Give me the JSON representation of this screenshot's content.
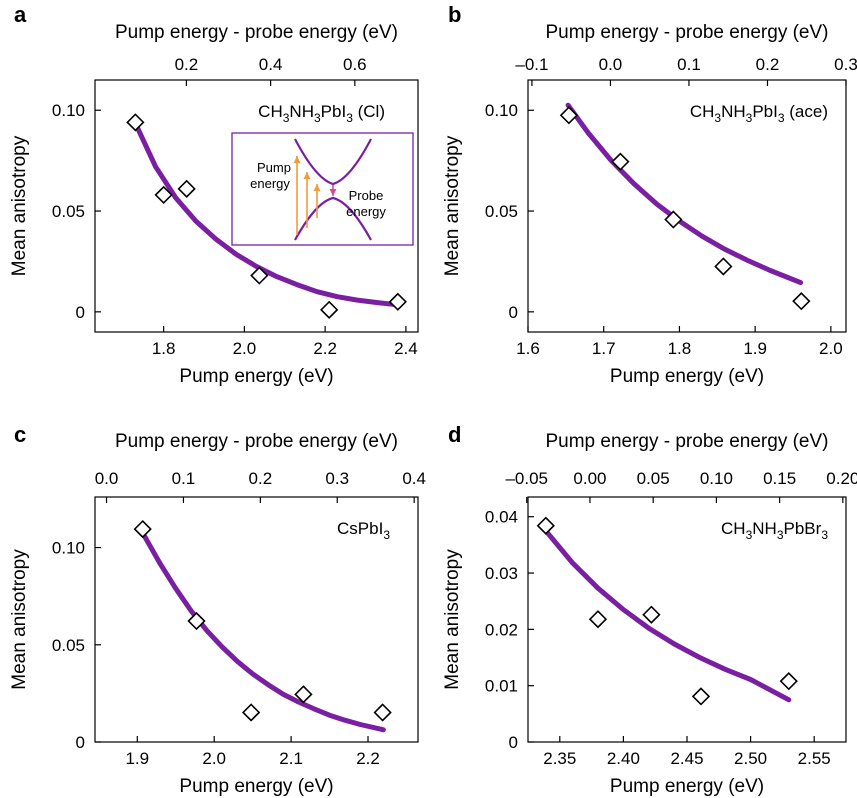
{
  "colors": {
    "fit": "#7b1fa2",
    "marker_edge": "#000000",
    "marker_fill": "#ffffff",
    "inset_pump": "#f29a3f",
    "inset_probe": "#d5489a",
    "inset_band": "#7b1fa2"
  },
  "chart_data": [
    {
      "panel": "a",
      "type": "scatter",
      "label": "CH3NH3PbI3 (Cl)",
      "label_parts": [
        [
          "CH",
          ""
        ],
        [
          "3",
          "sub"
        ],
        [
          "NH",
          ""
        ],
        [
          "3",
          "sub"
        ],
        [
          "PbI",
          ""
        ],
        [
          "3",
          "sub"
        ],
        [
          " (Cl)",
          ""
        ]
      ],
      "xlabel": "Pump energy (eV)",
      "top_xlabel": "Pump energy - probe energy (eV)",
      "ylabel": "Mean anisotropy",
      "xlim": [
        1.63,
        2.43
      ],
      "ylim": [
        -0.01,
        0.115
      ],
      "top_xlim": [
        -0.017,
        0.75
      ],
      "xticks": [
        1.8,
        2.0,
        2.2,
        2.4
      ],
      "xtick_labels": [
        "1.8",
        "2.0",
        "2.2",
        "2.4"
      ],
      "yticks": [
        0,
        0.05,
        0.1
      ],
      "ytick_labels": [
        "0",
        "0.05",
        "0.10"
      ],
      "top_xticks": [
        0.2,
        0.4,
        0.6
      ],
      "top_xtick_labels": [
        "0.2",
        "0.4",
        "0.6"
      ],
      "points": {
        "x": [
          1.73,
          1.8,
          1.857,
          2.037,
          2.21,
          2.38
        ],
        "y": [
          0.094,
          0.058,
          0.061,
          0.018,
          0.001,
          0.005
        ]
      },
      "fit": {
        "x": [
          1.73,
          1.78,
          1.83,
          1.88,
          1.93,
          1.98,
          2.03,
          2.08,
          2.13,
          2.18,
          2.23,
          2.28,
          2.33,
          2.38
        ],
        "y": [
          0.0935,
          0.072,
          0.0565,
          0.045,
          0.036,
          0.0285,
          0.0225,
          0.0175,
          0.0135,
          0.01,
          0.0075,
          0.0058,
          0.0046,
          0.0035
        ]
      },
      "inset": {
        "pump_label": [
          "Pump",
          "energy"
        ],
        "probe_label": [
          "Probe",
          "energy"
        ]
      }
    },
    {
      "panel": "b",
      "type": "scatter",
      "label": "CH3NH3PbI3 (ace)",
      "label_parts": [
        [
          "CH",
          ""
        ],
        [
          "3",
          "sub"
        ],
        [
          "NH",
          ""
        ],
        [
          "3",
          "sub"
        ],
        [
          "PbI",
          ""
        ],
        [
          "3",
          "sub"
        ],
        [
          " (ace)",
          ""
        ]
      ],
      "xlabel": "Pump energy (eV)",
      "top_xlabel": "Pump energy - probe energy (eV)",
      "ylabel": "Mean anisotropy",
      "xlim": [
        1.6,
        2.02
      ],
      "ylim": [
        -0.01,
        0.115
      ],
      "top_xlim": [
        -0.105,
        0.3
      ],
      "xticks": [
        1.6,
        1.7,
        1.8,
        1.9,
        2.0
      ],
      "xtick_labels": [
        "1.6",
        "1.7",
        "1.8",
        "1.9",
        "2.0"
      ],
      "yticks": [
        0,
        0.05,
        0.1
      ],
      "ytick_labels": [
        "0",
        "0.05",
        "0.10"
      ],
      "top_xticks": [
        -0.1,
        0.0,
        0.1,
        0.2,
        0.3
      ],
      "top_xtick_labels": [
        "–0.1",
        "0.0",
        "0.1",
        "0.2",
        "0.3"
      ],
      "points": {
        "x": [
          1.654,
          1.722,
          1.792,
          1.858,
          1.961
        ],
        "y": [
          0.0975,
          0.0745,
          0.0458,
          0.0225,
          0.0053
        ]
      },
      "fit": {
        "x": [
          1.653,
          1.68,
          1.71,
          1.74,
          1.77,
          1.8,
          1.83,
          1.86,
          1.89,
          1.92,
          1.96
        ],
        "y": [
          0.1025,
          0.0885,
          0.075,
          0.0635,
          0.0535,
          0.045,
          0.0375,
          0.031,
          0.0255,
          0.0205,
          0.0145
        ]
      }
    },
    {
      "panel": "c",
      "type": "scatter",
      "label": "CsPbI3",
      "label_parts": [
        [
          "CsPbI",
          ""
        ],
        [
          "3",
          "sub"
        ]
      ],
      "xlabel": "Pump energy (eV)",
      "top_xlabel": "Pump energy - probe energy (eV)",
      "ylabel": "Mean anisotropy",
      "xlim": [
        1.845,
        2.265
      ],
      "ylim": [
        0,
        0.126
      ],
      "top_xlim": [
        -0.015,
        0.405
      ],
      "xticks": [
        1.9,
        2.0,
        2.1,
        2.2
      ],
      "xtick_labels": [
        "1.9",
        "2.0",
        "2.1",
        "2.2"
      ],
      "yticks": [
        0,
        0.05,
        0.1
      ],
      "ytick_labels": [
        "0",
        "0.05",
        "0.10"
      ],
      "top_xticks": [
        0.0,
        0.1,
        0.2,
        0.3,
        0.4
      ],
      "top_xtick_labels": [
        "0.0",
        "0.1",
        "0.2",
        "0.3",
        "0.4"
      ],
      "points": {
        "x": [
          1.907,
          1.977,
          2.048,
          2.116,
          2.219
        ],
        "y": [
          0.1095,
          0.0622,
          0.0152,
          0.0245,
          0.0152
        ]
      },
      "fit": {
        "x": [
          1.907,
          1.93,
          1.95,
          1.97,
          1.99,
          2.01,
          2.03,
          2.05,
          2.07,
          2.09,
          2.11,
          2.13,
          2.15,
          2.17,
          2.19,
          2.22
        ],
        "y": [
          0.1075,
          0.0915,
          0.079,
          0.0675,
          0.0575,
          0.049,
          0.0415,
          0.035,
          0.0295,
          0.0245,
          0.0205,
          0.017,
          0.0138,
          0.0112,
          0.009,
          0.0063
        ]
      }
    },
    {
      "panel": "d",
      "type": "scatter",
      "label": "CH3NH3PbBr3",
      "label_parts": [
        [
          "CH",
          ""
        ],
        [
          "3",
          "sub"
        ],
        [
          "NH",
          ""
        ],
        [
          "3",
          "sub"
        ],
        [
          "PbBr",
          ""
        ],
        [
          "3",
          "sub"
        ]
      ],
      "xlabel": "Pump energy (eV)",
      "top_xlabel": "Pump energy - probe energy (eV)",
      "ylabel": "Mean anisotropy",
      "xlim": [
        2.325,
        2.575
      ],
      "ylim": [
        0,
        0.0435
      ],
      "top_xlim": [
        -0.049,
        0.2025
      ],
      "xticks": [
        2.35,
        2.4,
        2.45,
        2.5,
        2.55
      ],
      "xtick_labels": [
        "2.35",
        "2.40",
        "2.45",
        "2.50",
        "2.55"
      ],
      "yticks": [
        0,
        0.01,
        0.02,
        0.03,
        0.04
      ],
      "ytick_labels": [
        "0",
        "0.01",
        "0.02",
        "0.03",
        "0.04"
      ],
      "top_xticks": [
        -0.05,
        0.0,
        0.05,
        0.1,
        0.15,
        0.2
      ],
      "top_xtick_labels": [
        "–0.05",
        "0.00",
        "0.05",
        "0.10",
        "0.15",
        "0.20"
      ],
      "points": {
        "x": [
          2.339,
          2.38,
          2.422,
          2.461,
          2.53
        ],
        "y": [
          0.0384,
          0.0218,
          0.0226,
          0.0081,
          0.0108
        ]
      },
      "fit": {
        "x": [
          2.339,
          2.36,
          2.38,
          2.4,
          2.42,
          2.44,
          2.46,
          2.48,
          2.5,
          2.53
        ],
        "y": [
          0.0375,
          0.0318,
          0.0273,
          0.0235,
          0.0202,
          0.0174,
          0.015,
          0.0129,
          0.0111,
          0.0075
        ]
      }
    }
  ]
}
